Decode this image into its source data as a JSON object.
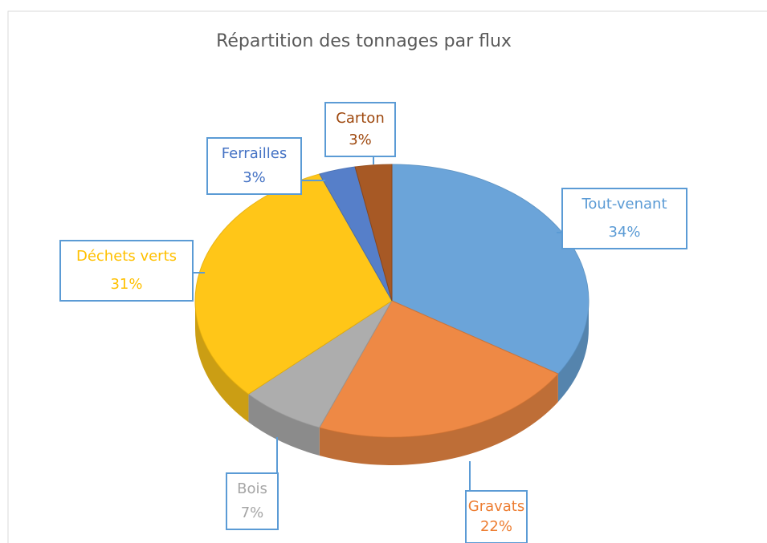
{
  "chart_data": {
    "type": "pie",
    "title": "Répartition des tonnages par flux",
    "categories": [
      "Tout-venant",
      "Gravats",
      "Bois",
      "Déchets verts",
      "Ferrailles",
      "Carton"
    ],
    "values": [
      34,
      22,
      7,
      31,
      3,
      3
    ],
    "value_labels": [
      "34%",
      "22%",
      "7%",
      "31%",
      "3%",
      "3%"
    ],
    "colors": [
      "#5b9bd5",
      "#ed7d31",
      "#a5a5a5",
      "#ffc000",
      "#4472c4",
      "#9e480e"
    ]
  }
}
